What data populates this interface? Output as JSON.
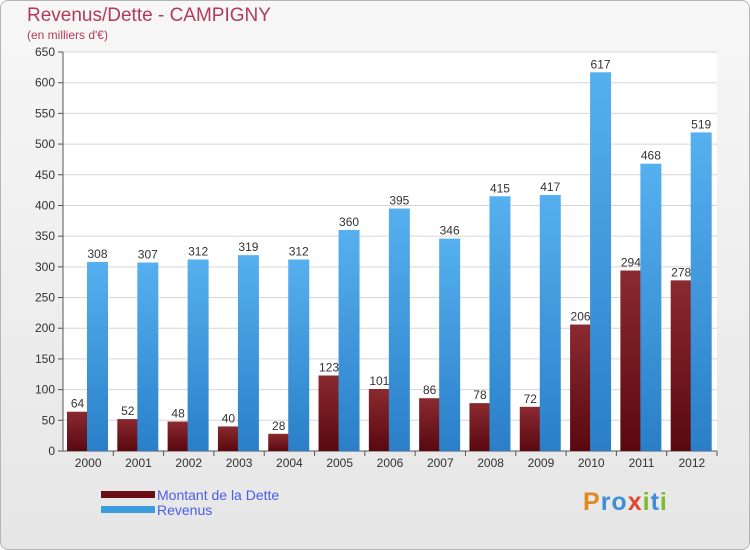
{
  "chart_data": {
    "type": "bar",
    "title": "Revenus/Dette - CAMPIGNY",
    "subtitle": "(en milliers d'€)",
    "xlabel": "",
    "ylabel": "",
    "ylim": [
      0,
      650
    ],
    "yticks": [
      0,
      50,
      100,
      150,
      200,
      250,
      300,
      350,
      400,
      450,
      500,
      550,
      600,
      650
    ],
    "grid": true,
    "categories": [
      "2000",
      "2001",
      "2002",
      "2003",
      "2004",
      "2005",
      "2006",
      "2007",
      "2008",
      "2009",
      "2010",
      "2011",
      "2012"
    ],
    "series": [
      {
        "name": "Montant de la Dette",
        "color": "#7a1b22",
        "values": [
          64,
          52,
          48,
          40,
          28,
          123,
          101,
          86,
          78,
          72,
          206,
          294,
          278
        ]
      },
      {
        "name": "Revenus",
        "color": "#3d9be0",
        "values": [
          308,
          307,
          312,
          319,
          312,
          360,
          395,
          346,
          415,
          417,
          617,
          468,
          519
        ]
      }
    ],
    "legend_position": "bottom-left"
  },
  "logo": {
    "text": "Proxiti",
    "letters": [
      "P",
      "r",
      "o",
      "x",
      "i",
      "t",
      "i"
    ],
    "colors": [
      "#e08a1e",
      "#3f8fd6",
      "#3f8fd6",
      "#e0492f",
      "#7dbb2b",
      "#3f8fd6",
      "#7dbb2b"
    ]
  }
}
